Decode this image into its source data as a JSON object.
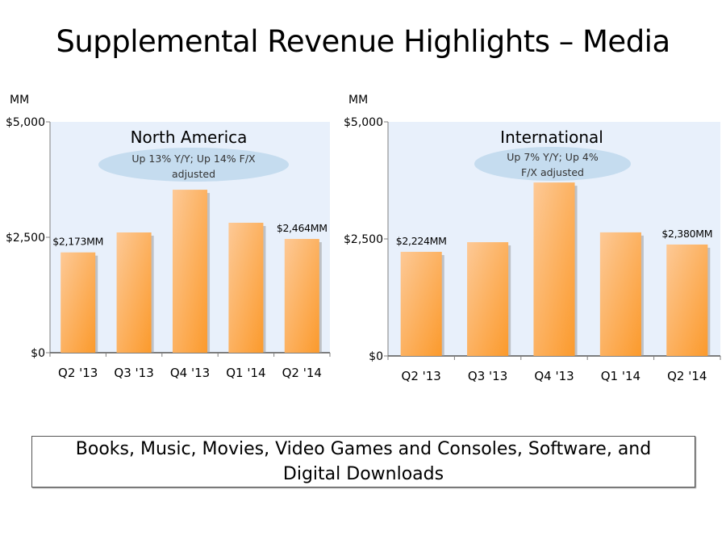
{
  "slide": {
    "title": "Supplemental Revenue Highlights – Media",
    "footer_text": "Books, Music, Movies, Video Games and Consoles, Software, and Digital Downloads"
  },
  "colors": {
    "plot_background": "#e8f0fb",
    "bar_light": "#fdc996",
    "bar_dark": "#fb9a2c",
    "callout": "#c5dcef",
    "axis": "#7f7f7f"
  },
  "chart_data": [
    {
      "type": "bar",
      "title": "North America",
      "callout": [
        "Up 13% Y/Y; Up 14% F/X",
        "adjusted"
      ],
      "unit_label": "MM",
      "categories": [
        "Q2 '13",
        "Q3 '13",
        "Q4 '13",
        "Q1 '14",
        "Q2 '14"
      ],
      "values": [
        2173,
        2605,
        3530,
        2815,
        2464
      ],
      "data_labels": [
        "$2,173MM",
        "",
        "",
        "",
        "$2,464MM"
      ],
      "yticks": [
        0,
        2500,
        5000
      ],
      "ytick_labels": [
        "$0",
        "$2,500",
        "$5,000"
      ],
      "ylim": [
        0,
        5000
      ],
      "grid": false
    },
    {
      "type": "bar",
      "title": "International",
      "callout": [
        "Up 7% Y/Y; Up 4%",
        "F/X adjusted"
      ],
      "unit_label": "MM",
      "categories": [
        "Q2 '13",
        "Q3 '13",
        "Q4 '13",
        "Q1 '14",
        "Q2 '14"
      ],
      "values": [
        2224,
        2430,
        3705,
        2640,
        2380
      ],
      "data_labels": [
        "$2,224MM",
        "",
        "",
        "",
        "$2,380MM"
      ],
      "yticks": [
        0,
        2500,
        5000
      ],
      "ytick_labels": [
        "$0",
        "$2,500",
        "$5,000"
      ],
      "ylim": [
        0,
        5000
      ],
      "grid": false
    }
  ]
}
